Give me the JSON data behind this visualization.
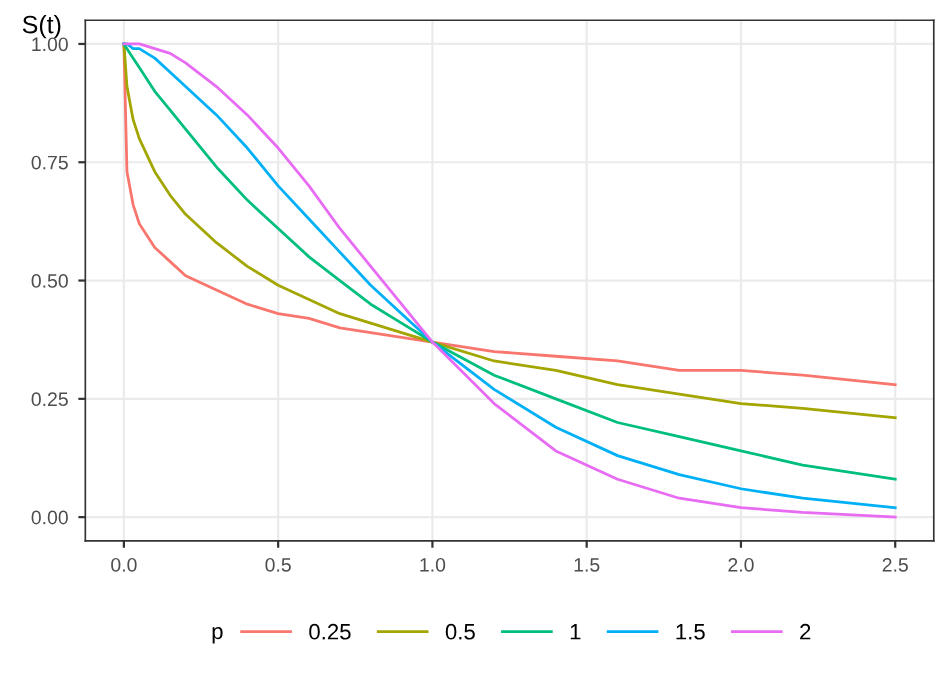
{
  "chart_data": {
    "type": "line",
    "ylabel": "S(t)",
    "legend_title": "p",
    "legend": "bottom",
    "grid": true,
    "x": [
      0,
      0.01,
      0.03,
      0.05,
      0.1,
      0.15,
      0.2,
      0.3,
      0.4,
      0.5,
      0.6,
      0.7,
      0.8,
      0.9,
      1.0,
      1.2,
      1.4,
      1.6,
      1.8,
      2.0,
      2.2,
      2.5
    ],
    "series": [
      {
        "name": "0.25",
        "color": "#f8766d",
        "values": [
          1,
          0.73,
          0.66,
          0.62,
          0.57,
          0.54,
          0.51,
          0.48,
          0.45,
          0.43,
          0.42,
          0.4,
          0.39,
          0.38,
          0.37,
          0.35,
          0.34,
          0.33,
          0.31,
          0.31,
          0.3,
          0.28
        ]
      },
      {
        "name": "0.5",
        "color": "#a3a500",
        "values": [
          1,
          0.91,
          0.84,
          0.8,
          0.73,
          0.68,
          0.64,
          0.58,
          0.53,
          0.49,
          0.46,
          0.43,
          0.41,
          0.39,
          0.37,
          0.33,
          0.31,
          0.28,
          0.26,
          0.24,
          0.23,
          0.21
        ]
      },
      {
        "name": "1",
        "color": "#00bf7d",
        "values": [
          1,
          0.99,
          0.97,
          0.95,
          0.9,
          0.86,
          0.82,
          0.74,
          0.67,
          0.61,
          0.55,
          0.5,
          0.45,
          0.41,
          0.37,
          0.3,
          0.25,
          0.2,
          0.17,
          0.14,
          0.11,
          0.08
        ]
      },
      {
        "name": "1.5",
        "color": "#00b0f6",
        "values": [
          1,
          1.0,
          0.99,
          0.99,
          0.97,
          0.94,
          0.91,
          0.85,
          0.78,
          0.7,
          0.63,
          0.56,
          0.49,
          0.43,
          0.37,
          0.27,
          0.19,
          0.13,
          0.09,
          0.06,
          0.04,
          0.02
        ]
      },
      {
        "name": "2",
        "color": "#e76bf3",
        "values": [
          1,
          1.0,
          1.0,
          1.0,
          0.99,
          0.98,
          0.96,
          0.91,
          0.85,
          0.78,
          0.7,
          0.61,
          0.53,
          0.45,
          0.37,
          0.24,
          0.14,
          0.08,
          0.04,
          0.02,
          0.01,
          0.0
        ]
      }
    ],
    "xlim": [
      -0.125,
      2.625
    ],
    "xticks": [
      {
        "value": 0,
        "label": "0.0"
      },
      0.5,
      {
        "value": 1,
        "label": "1.0"
      },
      1.5,
      {
        "value": 2,
        "label": "2.0"
      },
      2.5
    ],
    "ylim": [
      -0.05,
      1.05
    ],
    "yticks": [
      {
        "value": 0,
        "label": "0.00"
      },
      0.25,
      {
        "value": 0.5,
        "label": "0.50"
      },
      0.75,
      {
        "value": 1,
        "label": "1.00"
      }
    ]
  }
}
